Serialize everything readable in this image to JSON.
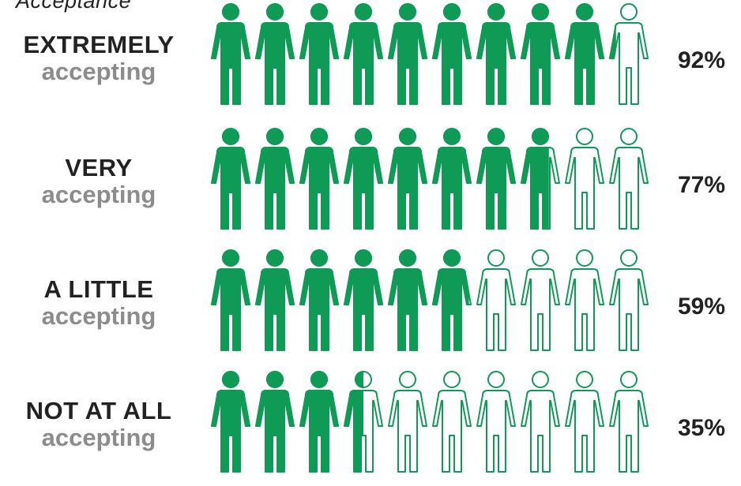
{
  "header": {
    "text": "Acceptance"
  },
  "colors": {
    "fill": "#0f9a56",
    "outline": "#0f9a56",
    "empty": "#ffffff"
  },
  "icon": "person-icon",
  "chart_data": {
    "type": "pictograph",
    "icons_per_row": 10,
    "unit": "%",
    "rows": [
      {
        "label_line1": "EXTREMELY",
        "label_line2": "accepting",
        "value": 92,
        "value_label": "92%"
      },
      {
        "label_line1": "VERY",
        "label_line2": "accepting",
        "value": 77,
        "value_label": "77%"
      },
      {
        "label_line1": "A LITTLE",
        "label_line2": "accepting",
        "value": 59,
        "value_label": "59%"
      },
      {
        "label_line1": "NOT AT ALL",
        "label_line2": "accepting",
        "value": 35,
        "value_label": "35%"
      }
    ]
  }
}
